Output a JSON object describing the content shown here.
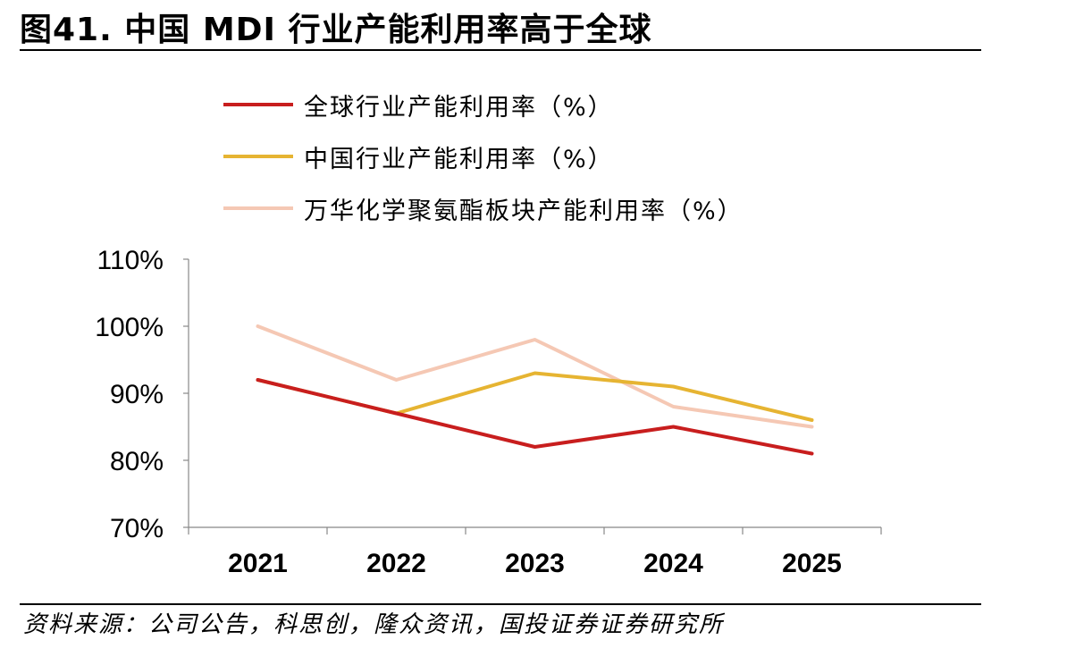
{
  "title": "图41. 中国 MDI 行业产能利用率高于全球",
  "source": "资料来源：公司公告，科思创，隆众资讯，国投证券证券研究所",
  "chart_data": {
    "type": "line",
    "title": "",
    "xlabel": "",
    "ylabel": "",
    "categories": [
      "2021",
      "2022",
      "2023",
      "2024",
      "2025"
    ],
    "ylim": [
      70,
      110
    ],
    "yticks": [
      70,
      80,
      90,
      100,
      110
    ],
    "ytick_labels": [
      "70%",
      "80%",
      "90%",
      "100%",
      "110%"
    ],
    "grid": false,
    "legend_position": "top",
    "series": [
      {
        "name": "全球行业产能利用率（%）",
        "color": "#c81e1e",
        "values": [
          92,
          87,
          82,
          85,
          81
        ]
      },
      {
        "name": "中国行业产能利用率（%）",
        "color": "#e6b432",
        "values": [
          92,
          87,
          93,
          91,
          86
        ]
      },
      {
        "name": "万华化学聚氨酯板块产能利用率（%）",
        "color": "#f5c8b4",
        "values": [
          100,
          92,
          98,
          88,
          85
        ]
      }
    ]
  }
}
